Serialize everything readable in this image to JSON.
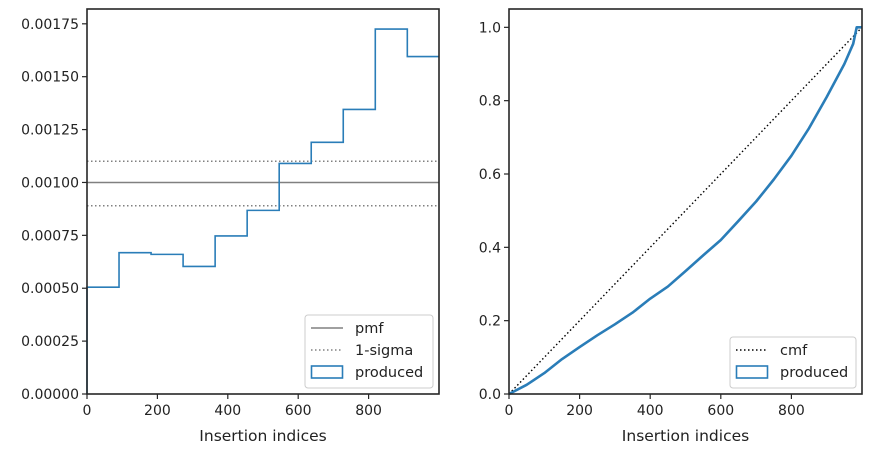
{
  "chart_data": [
    {
      "type": "step",
      "xlabel": "Insertion indices",
      "ylabel": "",
      "xlim": [
        0,
        1000
      ],
      "ylim": [
        0,
        0.00182
      ],
      "xticks": [
        0,
        200,
        400,
        600,
        800
      ],
      "xtick_labels": [
        "0",
        "200",
        "400",
        "600",
        "800"
      ],
      "yticks": [
        0,
        0.00025,
        0.0005,
        0.00075,
        0.001,
        0.00125,
        0.0015,
        0.00175
      ],
      "ytick_labels": [
        "0.00000",
        "0.00025",
        "0.00050",
        "0.00075",
        "0.00100",
        "0.00125",
        "0.00150",
        "0.00175"
      ],
      "grid": false,
      "legend_position": "lower right",
      "legend": [
        {
          "label": "pmf",
          "style": "solid",
          "color": "#808080"
        },
        {
          "label": "1-sigma",
          "style": "dotted",
          "color": "#808080"
        },
        {
          "label": "produced",
          "style": "box",
          "color": "#1f77b4"
        }
      ],
      "reference_lines": {
        "pmf": 0.001,
        "sigma_upper": 0.0011,
        "sigma_lower": 0.00089
      },
      "bin_edges": [
        0,
        91,
        182,
        273,
        364,
        455,
        546,
        637,
        728,
        819,
        910,
        1000
      ],
      "values": [
        0.000505,
        0.000668,
        0.00066,
        0.000603,
        0.000747,
        0.000868,
        0.00109,
        0.00119,
        0.001345,
        0.001725,
        0.001595
      ]
    },
    {
      "type": "line",
      "xlabel": "Insertion indices",
      "ylabel": "",
      "xlim": [
        0,
        1000
      ],
      "ylim": [
        0,
        1.05
      ],
      "xticks": [
        0,
        200,
        400,
        600,
        800
      ],
      "xtick_labels": [
        "0",
        "200",
        "400",
        "600",
        "800"
      ],
      "yticks": [
        0,
        0.2,
        0.4,
        0.6,
        0.8,
        1.0
      ],
      "ytick_labels": [
        "0.0",
        "0.2",
        "0.4",
        "0.6",
        "0.8",
        "1.0"
      ],
      "grid": false,
      "legend_position": "lower right",
      "legend": [
        {
          "label": "cmf",
          "style": "dotted",
          "color": "#000000"
        },
        {
          "label": "produced",
          "style": "box",
          "color": "#1f77b4"
        }
      ],
      "cmf_line": {
        "x": [
          0,
          1000
        ],
        "y": [
          0,
          1.0
        ]
      },
      "series": [
        {
          "x": [
            0,
            50,
            100,
            150,
            200,
            250,
            300,
            350,
            400,
            450,
            500,
            550,
            600,
            650,
            700,
            750,
            800,
            850,
            900,
            950,
            975,
            985,
            1000
          ],
          "y": [
            0,
            0.025,
            0.057,
            0.095,
            0.128,
            0.16,
            0.19,
            0.222,
            0.26,
            0.293,
            0.335,
            0.378,
            0.42,
            0.472,
            0.525,
            0.585,
            0.65,
            0.725,
            0.81,
            0.9,
            0.955,
            1.0,
            1.0
          ]
        }
      ]
    }
  ]
}
